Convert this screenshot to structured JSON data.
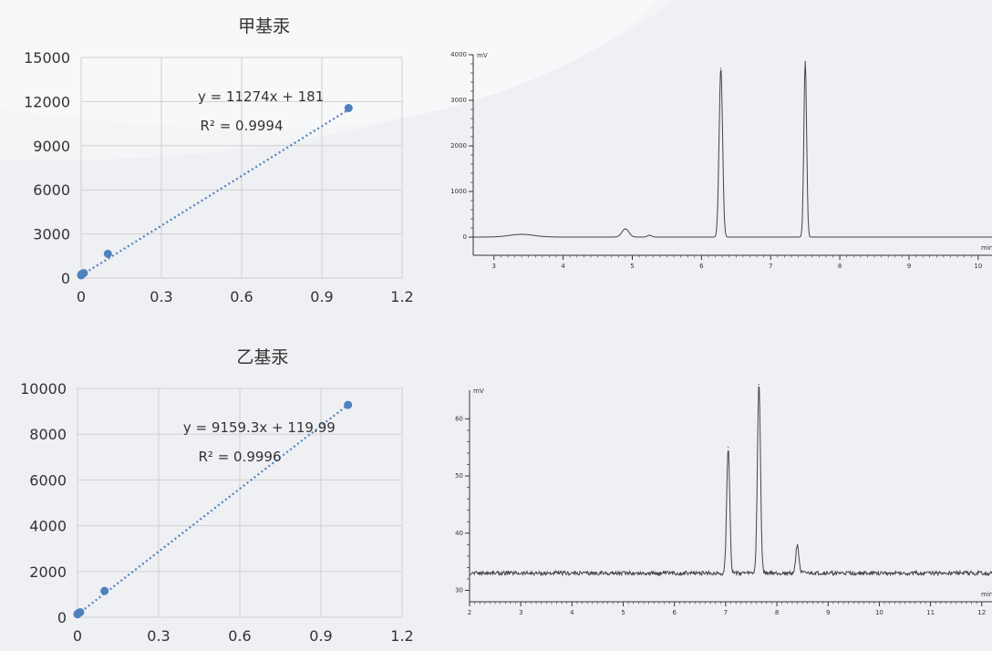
{
  "chart_data": [
    {
      "type": "scatter",
      "title": "甲基汞",
      "xlim": [
        0,
        1.2
      ],
      "ylim": [
        0,
        15000
      ],
      "x_ticks": [
        "0",
        "0.3",
        "0.6",
        "0.9",
        "1.2"
      ],
      "y_ticks": [
        "0",
        "3000",
        "6000",
        "9000",
        "12000",
        "15000"
      ],
      "x": [
        0,
        0.001,
        0.005,
        0.01,
        0.1,
        1
      ],
      "y": [
        190,
        250,
        300,
        340,
        1650,
        11560
      ],
      "trendline": {
        "slope": 11274,
        "intercept": 181,
        "style": "dotted"
      },
      "equation": "y = 11274x + 181",
      "r2": "R² = 0.9994",
      "grid": true,
      "marker_color": "#4f81bd"
    },
    {
      "type": "scatter",
      "title": "乙基汞",
      "xlim": [
        0,
        1.2
      ],
      "ylim": [
        0,
        10000
      ],
      "x_ticks": [
        "0",
        "0.3",
        "0.6",
        "0.9",
        "1.2"
      ],
      "y_ticks": [
        "0",
        "2000",
        "4000",
        "6000",
        "8000",
        "10000"
      ],
      "x": [
        0,
        0.001,
        0.005,
        0.01,
        0.1,
        1
      ],
      "y": [
        130,
        160,
        190,
        220,
        1150,
        9280
      ],
      "trendline": {
        "slope": 9159.3,
        "intercept": 119.99,
        "style": "dotted"
      },
      "equation": "y = 9159.3x + 119.99",
      "r2": "R² = 0.9996",
      "grid": true,
      "marker_color": "#4f81bd"
    },
    {
      "type": "line",
      "y_unit": "mV",
      "x_unit": "min",
      "xlim": [
        2.7,
        10.2
      ],
      "ylim": [
        -400,
        4000
      ],
      "x_ticks": [
        "3",
        "4",
        "5",
        "6",
        "7",
        "8",
        "9",
        "10"
      ],
      "y_ticks": [
        "0",
        "1000",
        "2000",
        "3000",
        "4000"
      ],
      "baseline": 0,
      "peaks": [
        {
          "x": 3.4,
          "height": 60,
          "width": 0.18
        },
        {
          "x": 4.9,
          "height": 180,
          "width": 0.05
        },
        {
          "x": 5.25,
          "height": 40,
          "width": 0.03
        },
        {
          "x": 6.28,
          "height": 3700,
          "width": 0.025
        },
        {
          "x": 7.5,
          "height": 3850,
          "width": 0.02
        }
      ]
    },
    {
      "type": "line",
      "y_unit": "mV",
      "x_unit": "min",
      "xlim": [
        2,
        12.2
      ],
      "ylim": [
        28,
        65
      ],
      "x_ticks": [
        "2",
        "3",
        "4",
        "5",
        "6",
        "7",
        "8",
        "9",
        "10",
        "11",
        "12"
      ],
      "y_ticks": [
        "30",
        "40",
        "50",
        "60"
      ],
      "baseline": 33,
      "noise": 0.35,
      "peaks": [
        {
          "x": 7.05,
          "height": 22,
          "width": 0.03
        },
        {
          "x": 7.65,
          "height": 33,
          "width": 0.03
        },
        {
          "x": 8.4,
          "height": 5,
          "width": 0.03
        }
      ]
    }
  ]
}
